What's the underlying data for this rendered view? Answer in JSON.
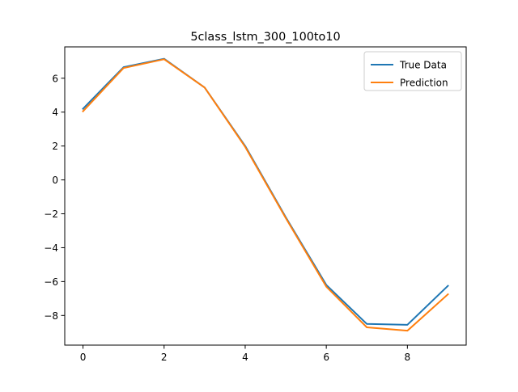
{
  "chart_data": {
    "type": "line",
    "title": "5class_lstm_300_100to10",
    "xlabel": "",
    "ylabel": "",
    "xlim": [
      -0.45,
      9.45
    ],
    "ylim": [
      -9.75,
      7.85
    ],
    "x_ticks": [
      0,
      2,
      4,
      6,
      8
    ],
    "y_ticks": [
      -8,
      -6,
      -4,
      -2,
      0,
      2,
      4,
      6
    ],
    "grid": false,
    "legend_position": "top-right",
    "x": [
      0,
      1,
      2,
      3,
      4,
      5,
      6,
      7,
      8,
      9
    ],
    "series": [
      {
        "name": "True Data",
        "color": "#1f77b4",
        "values": [
          4.2,
          6.65,
          7.15,
          5.45,
          2.0,
          -2.2,
          -6.2,
          -8.5,
          -8.55,
          -6.25
        ]
      },
      {
        "name": "Prediction",
        "color": "#ff7f0e",
        "values": [
          4.05,
          6.6,
          7.12,
          5.45,
          1.95,
          -2.25,
          -6.3,
          -8.7,
          -8.9,
          -6.75
        ]
      }
    ]
  }
}
